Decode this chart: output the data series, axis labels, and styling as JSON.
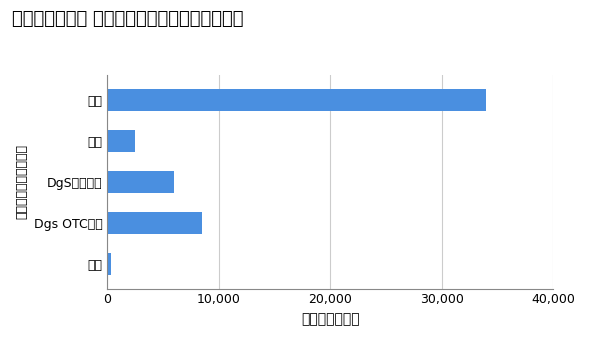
{
  "title": "マイナビ薬剤師 業種別求人数（調剤薬局あり）",
  "categories": [
    "調剤",
    "病院",
    "DgS調剤併設",
    "Dgs OTCのみ",
    "企業"
  ],
  "values": [
    34000,
    2500,
    6000,
    8500,
    300
  ],
  "bar_color": "#4A8FE0",
  "xlabel": "マイナビ薬剤師",
  "ylabel": "業種（調剤薬局あり）",
  "xlim": [
    0,
    40000
  ],
  "xticks": [
    0,
    10000,
    20000,
    30000,
    40000
  ],
  "background_color": "#ffffff",
  "title_fontsize": 13,
  "label_fontsize": 10,
  "tick_fontsize": 9,
  "grid_color": "#cccccc"
}
